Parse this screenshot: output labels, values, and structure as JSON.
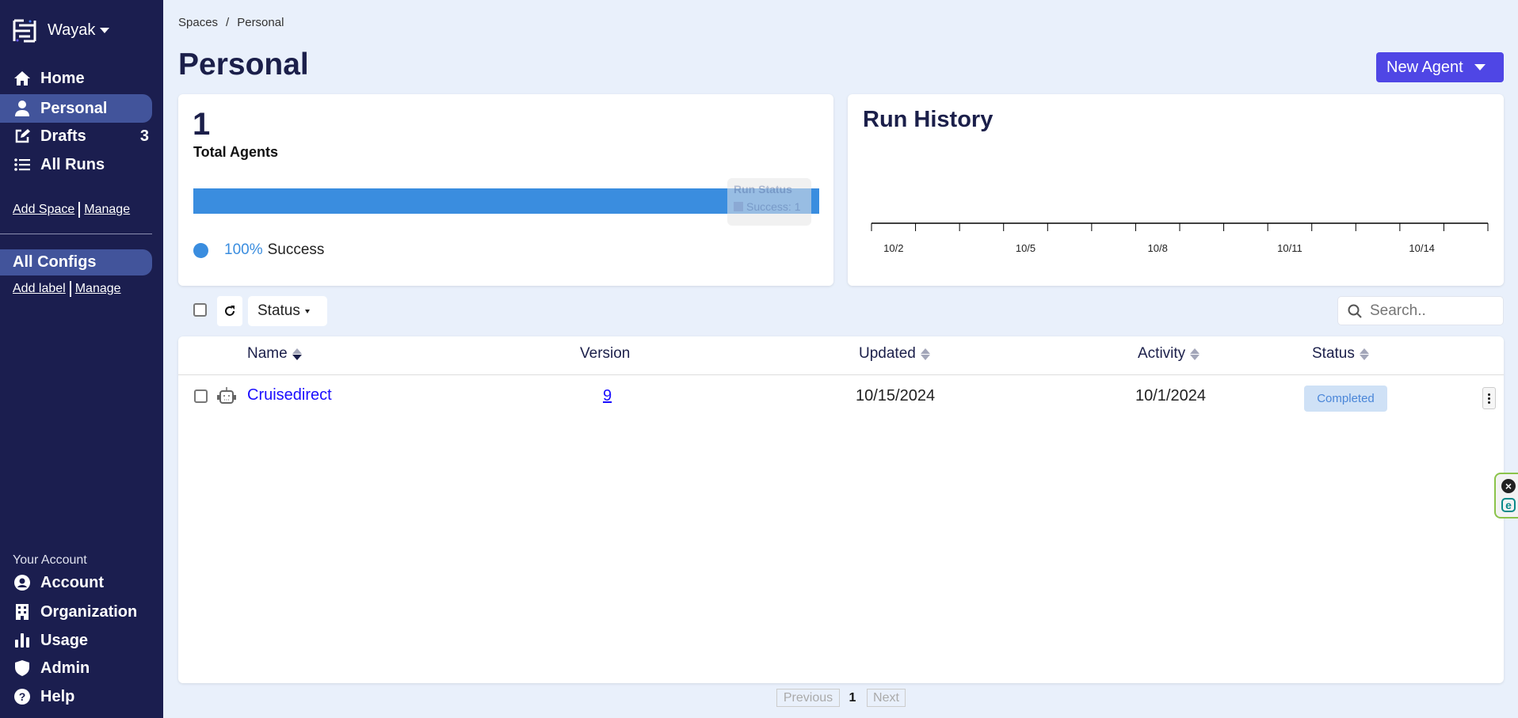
{
  "sidebar": {
    "workspace": "Wayak",
    "nav": [
      {
        "label": "Home",
        "icon": "home-icon"
      },
      {
        "label": "Personal",
        "icon": "user-icon",
        "active": true
      },
      {
        "label": "Drafts",
        "icon": "edit-icon",
        "count": "3"
      },
      {
        "label": "All Runs",
        "icon": "list-icon"
      }
    ],
    "add_space": "Add Space",
    "manage_spaces": "Manage",
    "all_configs": "All Configs",
    "add_label": "Add label",
    "manage_labels": "Manage",
    "account_heading": "Your Account",
    "account_nav": [
      {
        "label": "Account",
        "icon": "user-circle-icon"
      },
      {
        "label": "Organization",
        "icon": "building-icon"
      },
      {
        "label": "Usage",
        "icon": "bar-chart-icon"
      },
      {
        "label": "Admin",
        "icon": "shield-icon"
      },
      {
        "label": "Help",
        "icon": "question-circle-icon"
      }
    ]
  },
  "breadcrumb": {
    "root": "Spaces",
    "separator": "/",
    "current": "Personal"
  },
  "page_title": "Personal",
  "new_agent_label": "New Agent",
  "summary": {
    "total": "1",
    "total_label": "Total Agents",
    "success_percent": 100,
    "success_pct_text": "100%",
    "success_label": "Success",
    "bar_color": "#3a8ddf",
    "tooltip_title": "Run Status",
    "tooltip_item": "Success: 1"
  },
  "run_history": {
    "title": "Run History",
    "tick_labels": [
      "10/2",
      "10/5",
      "10/8",
      "10/11",
      "10/14"
    ]
  },
  "toolbar": {
    "status_filter": "Status",
    "search_placeholder": "Search.."
  },
  "table": {
    "headers": {
      "name": "Name",
      "version": "Version",
      "updated": "Updated",
      "activity": "Activity",
      "status": "Status"
    },
    "rows": [
      {
        "name": "Cruisedirect",
        "version": "9",
        "updated": "10/15/2024",
        "activity": "10/1/2024",
        "status": "Completed"
      }
    ]
  },
  "pagination": {
    "previous": "Previous",
    "page": "1",
    "next": "Next"
  }
}
